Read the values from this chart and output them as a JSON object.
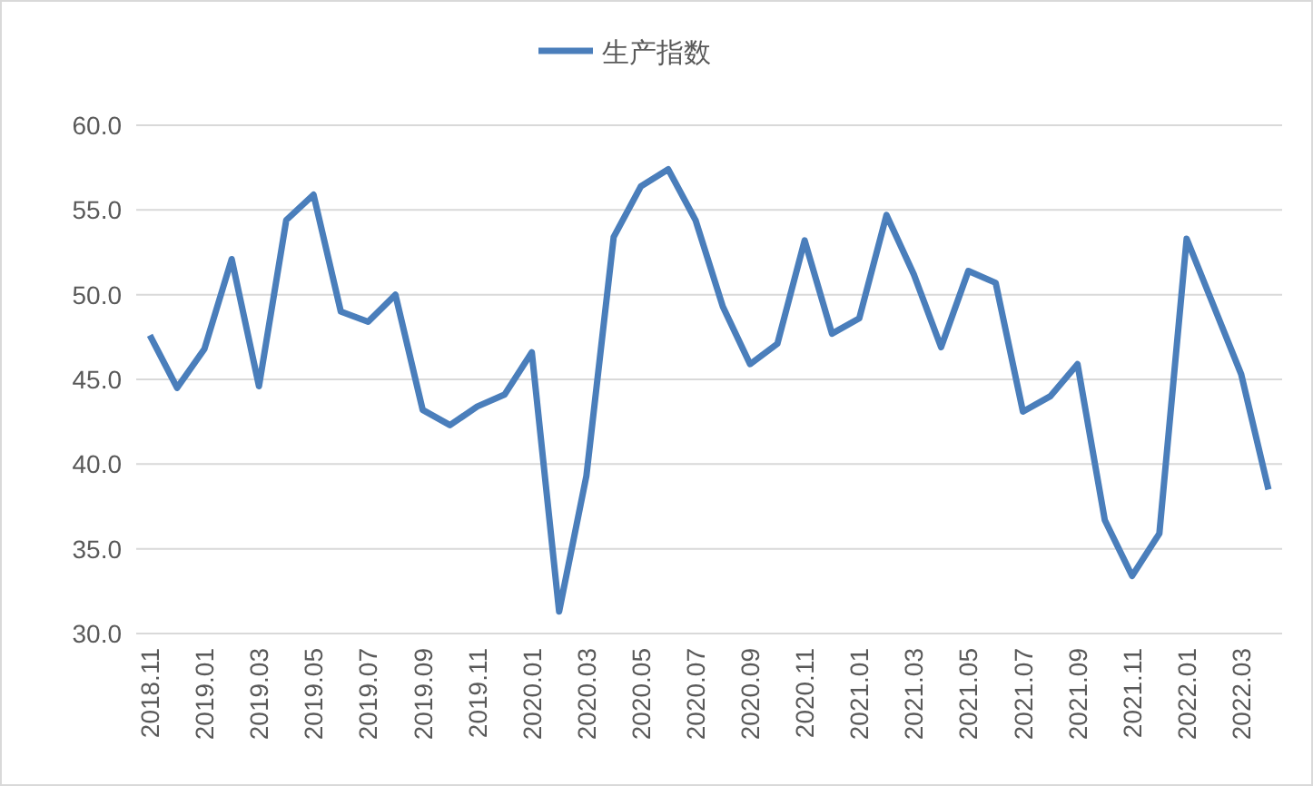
{
  "chart_data": {
    "type": "line",
    "categories": [
      "2018.11",
      null,
      "2019.01",
      null,
      "2019.03",
      null,
      "2019.05",
      null,
      "2019.07",
      null,
      "2019.09",
      null,
      "2019.11",
      null,
      "2020.01",
      null,
      "2020.03",
      null,
      "2020.05",
      null,
      "2020.07",
      null,
      "2020.09",
      null,
      "2020.11",
      null,
      "2021.01",
      null,
      "2021.03",
      null,
      "2021.05",
      null,
      "2021.07",
      null,
      "2021.09",
      null,
      "2021.11",
      null,
      "2022.01",
      null,
      "2022.03",
      null
    ],
    "series": [
      {
        "name": "生产指数",
        "color": "#4a7ebb",
        "values": [
          47.6,
          44.5,
          46.8,
          52.1,
          44.6,
          54.4,
          55.9,
          49.0,
          48.4,
          50.0,
          43.2,
          42.3,
          43.4,
          44.1,
          46.6,
          31.3,
          39.3,
          53.4,
          56.4,
          57.4,
          54.4,
          49.3,
          45.9,
          47.1,
          53.2,
          47.7,
          48.6,
          54.7,
          51.2,
          46.9,
          51.4,
          50.7,
          43.1,
          44.0,
          45.9,
          36.7,
          33.4,
          35.9,
          53.3,
          49.3,
          45.3,
          38.5
        ]
      }
    ],
    "ylim": [
      30,
      60
    ],
    "yticks": [
      {
        "value": 30,
        "label": "30.0"
      },
      {
        "value": 35,
        "label": "35.0"
      },
      {
        "value": 40,
        "label": "40.0"
      },
      {
        "value": 45,
        "label": "45.0"
      },
      {
        "value": 50,
        "label": "50.0"
      },
      {
        "value": 55,
        "label": "55.0"
      },
      {
        "value": 60,
        "label": "60.0"
      }
    ],
    "grid": "y",
    "legend": "top",
    "marker": "none",
    "line_style": "solid"
  }
}
